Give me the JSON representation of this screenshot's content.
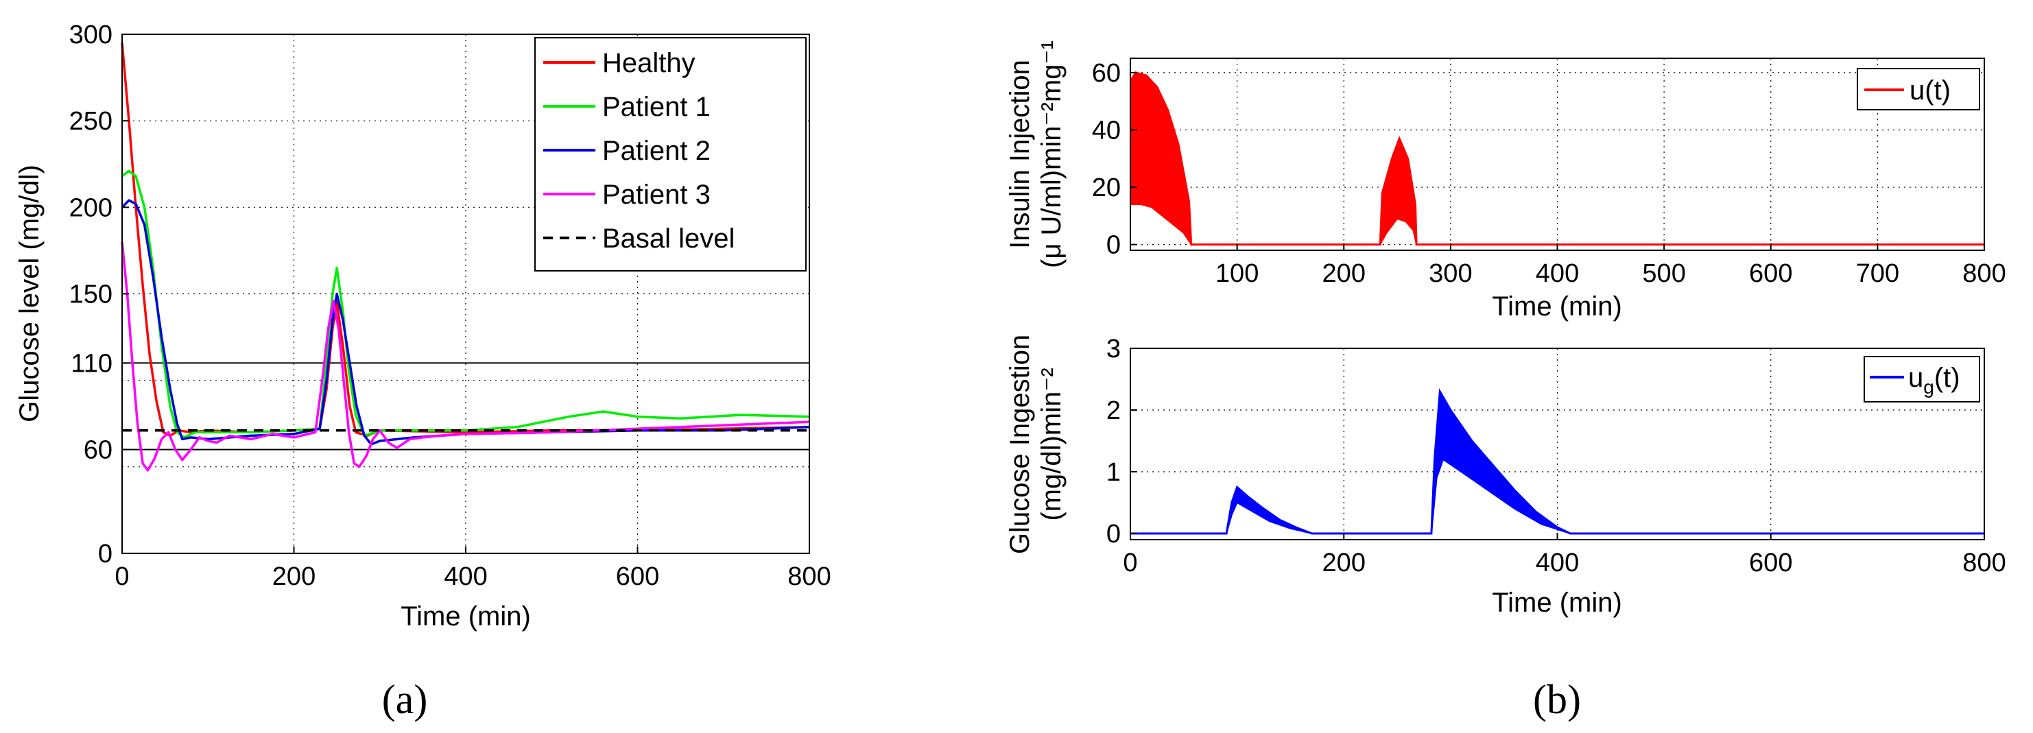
{
  "chart_data": [
    {
      "id": "glucose",
      "type": "line",
      "panel_label": "(a)",
      "xlabel": "Time (min)",
      "ylabel": "Glucose level (mg/dl)",
      "xlim": [
        0,
        800
      ],
      "ylim": [
        0,
        300
      ],
      "xticks": [
        0,
        200,
        400,
        600,
        800
      ],
      "yticks": [
        0,
        60,
        110,
        150,
        200,
        250,
        300
      ],
      "grid": true,
      "legend_position": "top-right",
      "reference_lines": [
        60,
        110
      ],
      "series": [
        {
          "name": "Healthy",
          "color": "#ff0000",
          "dash": "",
          "points": [
            [
              0,
              295
            ],
            [
              8,
              250
            ],
            [
              16,
              200
            ],
            [
              24,
              155
            ],
            [
              32,
              115
            ],
            [
              40,
              88
            ],
            [
              48,
              70
            ],
            [
              56,
              68
            ],
            [
              66,
              71
            ],
            [
              80,
              70
            ],
            [
              100,
              71
            ],
            [
              150,
              70
            ],
            [
              200,
              71
            ],
            [
              230,
              72
            ],
            [
              238,
              95
            ],
            [
              245,
              130
            ],
            [
              250,
              145
            ],
            [
              257,
              120
            ],
            [
              265,
              85
            ],
            [
              272,
              70
            ],
            [
              285,
              68
            ],
            [
              300,
              71
            ],
            [
              400,
              70
            ],
            [
              500,
              71
            ],
            [
              600,
              71
            ],
            [
              700,
              72
            ],
            [
              800,
              73
            ]
          ]
        },
        {
          "name": "Patient 1",
          "color": "#00ee00",
          "dash": "",
          "points": [
            [
              0,
              218
            ],
            [
              8,
              221
            ],
            [
              16,
              218
            ],
            [
              26,
              200
            ],
            [
              36,
              165
            ],
            [
              46,
              120
            ],
            [
              56,
              85
            ],
            [
              64,
              70
            ],
            [
              72,
              67
            ],
            [
              85,
              70
            ],
            [
              100,
              70
            ],
            [
              150,
              70
            ],
            [
              200,
              71
            ],
            [
              230,
              72
            ],
            [
              238,
              110
            ],
            [
              245,
              150
            ],
            [
              250,
              165
            ],
            [
              257,
              140
            ],
            [
              264,
              105
            ],
            [
              272,
              80
            ],
            [
              282,
              68
            ],
            [
              300,
              71
            ],
            [
              400,
              71
            ],
            [
              460,
              73
            ],
            [
              520,
              79
            ],
            [
              560,
              82
            ],
            [
              600,
              79
            ],
            [
              650,
              78
            ],
            [
              720,
              80
            ],
            [
              800,
              79
            ]
          ]
        },
        {
          "name": "Patient 2",
          "color": "#0000dd",
          "dash": "",
          "points": [
            [
              0,
              200
            ],
            [
              8,
              204
            ],
            [
              16,
              202
            ],
            [
              26,
              190
            ],
            [
              36,
              160
            ],
            [
              46,
              125
            ],
            [
              56,
              95
            ],
            [
              64,
              75
            ],
            [
              70,
              66
            ],
            [
              80,
              67
            ],
            [
              100,
              66
            ],
            [
              150,
              68
            ],
            [
              200,
              69
            ],
            [
              230,
              72
            ],
            [
              238,
              100
            ],
            [
              245,
              135
            ],
            [
              250,
              150
            ],
            [
              257,
              135
            ],
            [
              265,
              110
            ],
            [
              273,
              85
            ],
            [
              282,
              68
            ],
            [
              290,
              63
            ],
            [
              300,
              65
            ],
            [
              320,
              66
            ],
            [
              340,
              67
            ],
            [
              400,
              69
            ],
            [
              500,
              70
            ],
            [
              600,
              71
            ],
            [
              700,
              71
            ],
            [
              800,
              73
            ]
          ]
        },
        {
          "name": "Patient 3",
          "color": "#ff00ff",
          "dash": "",
          "points": [
            [
              0,
              180
            ],
            [
              6,
              150
            ],
            [
              12,
              110
            ],
            [
              18,
              75
            ],
            [
              24,
              52
            ],
            [
              30,
              48
            ],
            [
              38,
              55
            ],
            [
              46,
              66
            ],
            [
              54,
              70
            ],
            [
              62,
              60
            ],
            [
              70,
              54
            ],
            [
              80,
              60
            ],
            [
              90,
              67
            ],
            [
              100,
              65
            ],
            [
              110,
              64
            ],
            [
              125,
              68
            ],
            [
              150,
              66
            ],
            [
              175,
              69
            ],
            [
              200,
              67
            ],
            [
              225,
              70
            ],
            [
              233,
              100
            ],
            [
              240,
              130
            ],
            [
              246,
              146
            ],
            [
              252,
              130
            ],
            [
              258,
              100
            ],
            [
              264,
              70
            ],
            [
              270,
              52
            ],
            [
              276,
              50
            ],
            [
              284,
              56
            ],
            [
              292,
              66
            ],
            [
              300,
              71
            ],
            [
              310,
              64
            ],
            [
              320,
              61
            ],
            [
              335,
              66
            ],
            [
              350,
              67
            ],
            [
              370,
              68
            ],
            [
              400,
              69
            ],
            [
              500,
              70
            ],
            [
              600,
              72
            ],
            [
              700,
              74
            ],
            [
              800,
              76
            ]
          ]
        },
        {
          "name": "Basal level",
          "color": "#000000",
          "dash": "14 10",
          "points": [
            [
              0,
              71
            ],
            [
              800,
              71
            ]
          ]
        }
      ]
    },
    {
      "id": "insulin",
      "type": "area",
      "xlabel": "Time (min)",
      "ylabel_line1": "Insulin Injection",
      "ylabel_line2": "(μ U/ml)min⁻²mg⁻¹",
      "xlim": [
        0,
        800
      ],
      "ylim": [
        -2,
        65
      ],
      "xticks": [
        100,
        200,
        300,
        400,
        500,
        600,
        700,
        800
      ],
      "yticks": [
        0,
        20,
        40,
        60
      ],
      "grid": true,
      "legend_position": "top-right",
      "series": [
        {
          "name": "u(t)",
          "color": "#ff0000",
          "upper": [
            [
              0,
              57
            ],
            [
              5,
              60
            ],
            [
              15,
              59
            ],
            [
              25,
              55
            ],
            [
              35,
              47
            ],
            [
              45,
              35
            ],
            [
              55,
              15
            ],
            [
              57,
              0
            ],
            [
              234,
              0
            ],
            [
              236,
              18
            ],
            [
              245,
              30
            ],
            [
              252,
              37
            ],
            [
              260,
              30
            ],
            [
              267,
              14
            ],
            [
              268,
              0
            ],
            [
              800,
              0
            ]
          ],
          "lower": [
            [
              0,
              14
            ],
            [
              10,
              14
            ],
            [
              20,
              13
            ],
            [
              30,
              10
            ],
            [
              40,
              7
            ],
            [
              50,
              4
            ],
            [
              57,
              0
            ],
            [
              234,
              0
            ],
            [
              240,
              4
            ],
            [
              250,
              9
            ],
            [
              258,
              8
            ],
            [
              265,
              5
            ],
            [
              268,
              0
            ],
            [
              800,
              0
            ]
          ]
        }
      ]
    },
    {
      "id": "glucose_ingestion",
      "type": "area",
      "panel_label": "(b)",
      "xlabel": "Time (min)",
      "ylabel_line1": "Glucose Ingestion",
      "ylabel_line2": "(mg/dl)min⁻²",
      "xlim": [
        0,
        800
      ],
      "ylim": [
        -0.1,
        3
      ],
      "xticks": [
        0,
        200,
        400,
        600,
        800
      ],
      "yticks": [
        0,
        1,
        2,
        3
      ],
      "grid": true,
      "legend_position": "top-right",
      "series": [
        {
          "name": "u_g(t)",
          "legend_main": "u",
          "legend_sub": "g",
          "legend_tail": "(t)",
          "color": "#0000ff",
          "upper": [
            [
              0,
              0
            ],
            [
              90,
              0
            ],
            [
              95,
              0.5
            ],
            [
              100,
              0.75
            ],
            [
              110,
              0.6
            ],
            [
              125,
              0.4
            ],
            [
              140,
              0.22
            ],
            [
              155,
              0.1
            ],
            [
              170,
              0
            ],
            [
              282,
              0
            ],
            [
              285,
              1.2
            ],
            [
              290,
              2.3
            ],
            [
              300,
              2.0
            ],
            [
              320,
              1.5
            ],
            [
              340,
              1.1
            ],
            [
              360,
              0.7
            ],
            [
              380,
              0.35
            ],
            [
              400,
              0.1
            ],
            [
              412,
              0
            ],
            [
              800,
              0
            ]
          ],
          "lower": [
            [
              0,
              0
            ],
            [
              90,
              0
            ],
            [
              95,
              0.3
            ],
            [
              100,
              0.5
            ],
            [
              115,
              0.35
            ],
            [
              130,
              0.2
            ],
            [
              150,
              0.08
            ],
            [
              170,
              0
            ],
            [
              282,
              0
            ],
            [
              287,
              0.9
            ],
            [
              293,
              1.2
            ],
            [
              310,
              1.0
            ],
            [
              335,
              0.7
            ],
            [
              360,
              0.4
            ],
            [
              385,
              0.15
            ],
            [
              412,
              0
            ],
            [
              800,
              0
            ]
          ]
        }
      ]
    }
  ]
}
